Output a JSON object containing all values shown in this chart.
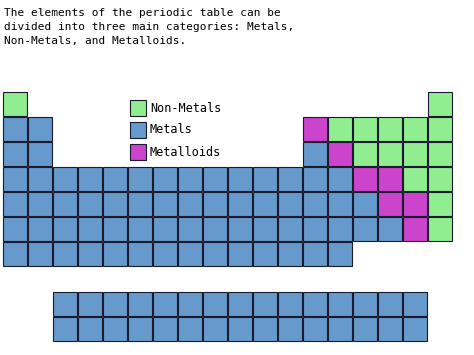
{
  "title_text": "The elements of the periodic table can be\ndivided into three main categories: Metals,\nNon-Metals, and Metalloids.",
  "colors": {
    "nonmetal": "#90EE90",
    "metal": "#6699CC",
    "metalloid": "#CC44CC",
    "background": "#FFFFFF",
    "edge": "#1a1a2e"
  },
  "legend": [
    {
      "label": "Non-Metals",
      "color": "#90EE90"
    },
    {
      "label": "Metals",
      "color": "#6699CC"
    },
    {
      "label": "Metalloids",
      "color": "#CC44CC"
    }
  ],
  "figsize": [
    4.74,
    3.55
  ],
  "dpi": 100
}
